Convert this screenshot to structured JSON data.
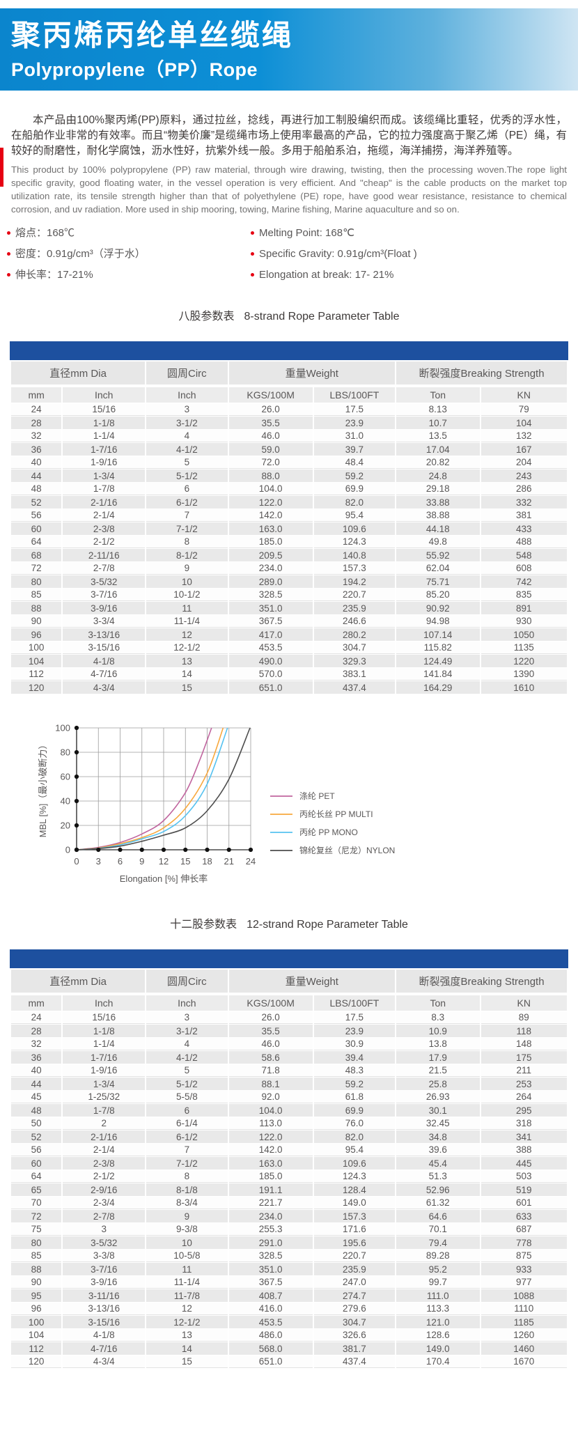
{
  "header": {
    "title_cn": "聚丙烯丙纶单丝缆绳",
    "title_en": "Polypropylene（PP）Rope"
  },
  "intro": {
    "cn": "本产品由100%聚丙烯(PP)原料，通过拉丝，捻线，再进行加工制股编织而成。该缆绳比重轻，优秀的浮水性，在船舶作业非常的有效率。而且“物美价廉”是缆绳市场上使用率最高的产品，它的拉力强度高于聚乙烯（PE）绳，有较好的耐磨性，耐化学腐蚀，沥水性好，抗紫外线一般。多用于船舶系泊，拖缆，海洋捕捞，海洋养殖等。",
    "en": "This product by 100% polypropylene (PP) raw material, through wire drawing, twisting, then the processing woven.The rope light specific gravity, good floating water, in the vessel operation is very efficient. And \"cheap\" is the cable products on the market top utilization rate, its tensile strength higher than that of polyethylene (PE) rope, have good wear resistance, resistance to chemical corrosion, and uv radiation. More used in ship mooring, towing, Marine fishing, Marine aquaculture and so on."
  },
  "specs": {
    "cn": [
      "熔点：168℃",
      "密度：0.91g/cm³（浮于水）",
      "伸长率：17-21%"
    ],
    "en": [
      "Melting Point: 168℃",
      "Specific Gravity: 0.91g/cm³(Float )",
      "Elongation at break: 17- 21%"
    ]
  },
  "table8": {
    "title_cn": "八股参数表",
    "title_en": "8-strand Rope Parameter Table",
    "group_headers": [
      "直径mm Dia",
      "圆周Circ",
      "重量Weight",
      "断裂强度Breaking Strength"
    ],
    "group_spans": [
      2,
      1,
      2,
      2
    ],
    "unit_headers": [
      "mm",
      "Inch",
      "Inch",
      "KGS/100M",
      "LBS/100FT",
      "Ton",
      "KN"
    ],
    "rows": [
      [
        "24",
        "15/16",
        "3",
        "26.0",
        "17.5",
        "8.13",
        "79"
      ],
      [
        "28",
        "1-1/8",
        "3-1/2",
        "35.5",
        "23.9",
        "10.7",
        "104"
      ],
      [
        "32",
        "1-1/4",
        "4",
        "46.0",
        "31.0",
        "13.5",
        "132"
      ],
      [
        "36",
        "1-7/16",
        "4-1/2",
        "59.0",
        "39.7",
        "17.04",
        "167"
      ],
      [
        "40",
        "1-9/16",
        "5",
        "72.0",
        "48.4",
        "20.82",
        "204"
      ],
      [
        "44",
        "1-3/4",
        "5-1/2",
        "88.0",
        "59.2",
        "24.8",
        "243"
      ],
      [
        "48",
        "1-7/8",
        "6",
        "104.0",
        "69.9",
        "29.18",
        "286"
      ],
      [
        "52",
        "2-1/16",
        "6-1/2",
        "122.0",
        "82.0",
        "33.88",
        "332"
      ],
      [
        "56",
        "2-1/4",
        "7",
        "142.0",
        "95.4",
        "38.88",
        "381"
      ],
      [
        "60",
        "2-3/8",
        "7-1/2",
        "163.0",
        "109.6",
        "44.18",
        "433"
      ],
      [
        "64",
        "2-1/2",
        "8",
        "185.0",
        "124.3",
        "49.8",
        "488"
      ],
      [
        "68",
        "2-11/16",
        "8-1/2",
        "209.5",
        "140.8",
        "55.92",
        "548"
      ],
      [
        "72",
        "2-7/8",
        "9",
        "234.0",
        "157.3",
        "62.04",
        "608"
      ],
      [
        "80",
        "3-5/32",
        "10",
        "289.0",
        "194.2",
        "75.71",
        "742"
      ],
      [
        "85",
        "3-7/16",
        "10-1/2",
        "328.5",
        "220.7",
        "85.20",
        "835"
      ],
      [
        "88",
        "3-9/16",
        "11",
        "351.0",
        "235.9",
        "90.92",
        "891"
      ],
      [
        "90",
        "3-3/4",
        "11-1/4",
        "367.5",
        "246.6",
        "94.98",
        "930"
      ],
      [
        "96",
        "3-13/16",
        "12",
        "417.0",
        "280.2",
        "107.14",
        "1050"
      ],
      [
        "100",
        "3-15/16",
        "12-1/2",
        "453.5",
        "304.7",
        "115.82",
        "1135"
      ],
      [
        "104",
        "4-1/8",
        "13",
        "490.0",
        "329.3",
        "124.49",
        "1220"
      ],
      [
        "112",
        "4-7/16",
        "14",
        "570.0",
        "383.1",
        "141.84",
        "1390"
      ],
      [
        "120",
        "4-3/4",
        "15",
        "651.0",
        "437.4",
        "164.29",
        "1610"
      ]
    ]
  },
  "chart_data": {
    "type": "line",
    "title": "",
    "xlabel": "Elongation [%] 伸长率",
    "ylabel": "MBL [%]（最小破断力）",
    "xlim": [
      0,
      24
    ],
    "ylim": [
      0,
      100
    ],
    "xticks": [
      0,
      3,
      6,
      9,
      12,
      15,
      18,
      21,
      24
    ],
    "yticks": [
      0,
      20,
      40,
      60,
      80,
      100
    ],
    "grid": true,
    "legend_position": "right",
    "series": [
      {
        "name": "涤纶 PET",
        "color": "#c0649e",
        "points": [
          [
            0,
            0
          ],
          [
            3,
            2
          ],
          [
            6,
            6
          ],
          [
            9,
            13
          ],
          [
            12,
            24
          ],
          [
            15,
            47
          ],
          [
            17,
            74
          ],
          [
            18.6,
            100
          ]
        ]
      },
      {
        "name": "丙纶长丝 PP MULTI",
        "color": "#f7a83d",
        "points": [
          [
            0,
            0
          ],
          [
            3,
            1.5
          ],
          [
            6,
            5
          ],
          [
            9,
            10
          ],
          [
            12,
            18
          ],
          [
            15,
            34
          ],
          [
            18,
            63
          ],
          [
            20.2,
            100
          ]
        ]
      },
      {
        "name": "丙纶 PP MONO",
        "color": "#56c2f0",
        "points": [
          [
            0,
            0
          ],
          [
            3,
            1.2
          ],
          [
            6,
            4
          ],
          [
            9,
            9
          ],
          [
            12,
            15
          ],
          [
            15,
            28
          ],
          [
            18,
            54
          ],
          [
            20.8,
            100
          ]
        ]
      },
      {
        "name": "锦纶复丝（尼龙）NYLON",
        "color": "#4d4d4d",
        "points": [
          [
            0,
            0
          ],
          [
            3,
            1
          ],
          [
            6,
            3
          ],
          [
            9,
            7
          ],
          [
            12,
            12
          ],
          [
            15,
            18
          ],
          [
            18,
            32
          ],
          [
            21,
            58
          ],
          [
            23.9,
            100
          ]
        ]
      }
    ]
  },
  "table12": {
    "title_cn": "十二股参数表",
    "title_en": "12-strand Rope Parameter Table",
    "group_headers": [
      "直径mm Dia",
      "圆周Circ",
      "重量Weight",
      "断裂强度Breaking Strength"
    ],
    "group_spans": [
      2,
      1,
      2,
      2
    ],
    "unit_headers": [
      "mm",
      "Inch",
      "Inch",
      "KGS/100M",
      "LBS/100FT",
      "Ton",
      "KN"
    ],
    "rows": [
      [
        "24",
        "15/16",
        "3",
        "26.0",
        "17.5",
        "8.3",
        "89"
      ],
      [
        "28",
        "1-1/8",
        "3-1/2",
        "35.5",
        "23.9",
        "10.9",
        "118"
      ],
      [
        "32",
        "1-1/4",
        "4",
        "46.0",
        "30.9",
        "13.8",
        "148"
      ],
      [
        "36",
        "1-7/16",
        "4-1/2",
        "58.6",
        "39.4",
        "17.9",
        "175"
      ],
      [
        "40",
        "1-9/16",
        "5",
        "71.8",
        "48.3",
        "21.5",
        "211"
      ],
      [
        "44",
        "1-3/4",
        "5-1/2",
        "88.1",
        "59.2",
        "25.8",
        "253"
      ],
      [
        "45",
        "1-25/32",
        "5-5/8",
        "92.0",
        "61.8",
        "26.93",
        "264"
      ],
      [
        "48",
        "1-7/8",
        "6",
        "104.0",
        "69.9",
        "30.1",
        "295"
      ],
      [
        "50",
        "2",
        "6-1/4",
        "113.0",
        "76.0",
        "32.45",
        "318"
      ],
      [
        "52",
        "2-1/16",
        "6-1/2",
        "122.0",
        "82.0",
        "34.8",
        "341"
      ],
      [
        "56",
        "2-1/4",
        "7",
        "142.0",
        "95.4",
        "39.6",
        "388"
      ],
      [
        "60",
        "2-3/8",
        "7-1/2",
        "163.0",
        "109.6",
        "45.4",
        "445"
      ],
      [
        "64",
        "2-1/2",
        "8",
        "185.0",
        "124.3",
        "51.3",
        "503"
      ],
      [
        "65",
        "2-9/16",
        "8-1/8",
        "191.1",
        "128.4",
        "52.96",
        "519"
      ],
      [
        "70",
        "2-3/4",
        "8-3/4",
        "221.7",
        "149.0",
        "61.32",
        "601"
      ],
      [
        "72",
        "2-7/8",
        "9",
        "234.0",
        "157.3",
        "64.6",
        "633"
      ],
      [
        "75",
        "3",
        "9-3/8",
        "255.3",
        "171.6",
        "70.1",
        "687"
      ],
      [
        "80",
        "3-5/32",
        "10",
        "291.0",
        "195.6",
        "79.4",
        "778"
      ],
      [
        "85",
        "3-3/8",
        "10-5/8",
        "328.5",
        "220.7",
        "89.28",
        "875"
      ],
      [
        "88",
        "3-7/16",
        "11",
        "351.0",
        "235.9",
        "95.2",
        "933"
      ],
      [
        "90",
        "3-9/16",
        "11-1/4",
        "367.5",
        "247.0",
        "99.7",
        "977"
      ],
      [
        "95",
        "3-11/16",
        "11-7/8",
        "408.7",
        "274.7",
        "111.0",
        "1088"
      ],
      [
        "96",
        "3-13/16",
        "12",
        "416.0",
        "279.6",
        "113.3",
        "1110"
      ],
      [
        "100",
        "3-15/16",
        "12-1/2",
        "453.5",
        "304.7",
        "121.0",
        "1185"
      ],
      [
        "104",
        "4-1/8",
        "13",
        "486.0",
        "326.6",
        "128.6",
        "1260"
      ],
      [
        "112",
        "4-7/16",
        "14",
        "568.0",
        "381.7",
        "149.0",
        "1460"
      ],
      [
        "120",
        "4-3/4",
        "15",
        "651.0",
        "437.4",
        "170.4",
        "1670"
      ]
    ]
  },
  "colors": {
    "header_blue": "#0d8fd6",
    "navy_band": "#1d509f",
    "accent_red": "#e60012",
    "row_shade": "#e9e9e9",
    "text_dark": "#3e3a39",
    "text_gray": "#595757"
  }
}
